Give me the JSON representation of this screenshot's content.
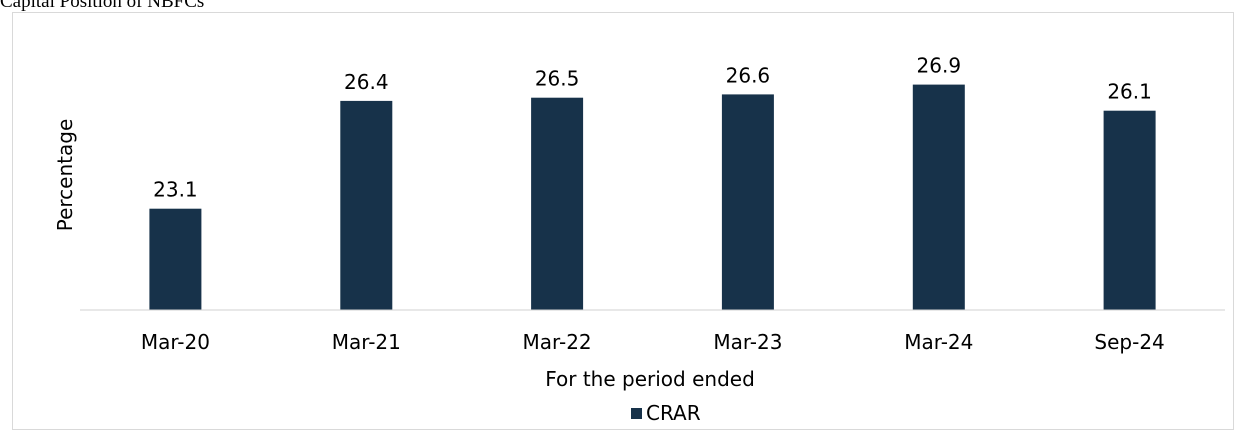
{
  "page_title": "Capital Position of NBFCs",
  "chart_data": {
    "type": "bar",
    "title": "",
    "xlabel": "For the period ended",
    "ylabel": "Percentage",
    "categories": [
      "Mar-20",
      "Mar-21",
      "Mar-22",
      "Mar-23",
      "Mar-24",
      "Sep-24"
    ],
    "series": [
      {
        "name": "CRAR",
        "values": [
          23.1,
          26.4,
          26.5,
          26.6,
          26.9,
          26.1
        ],
        "color": "#17324a"
      }
    ],
    "data_labels": [
      "23.1",
      "26.4",
      "26.5",
      "26.6",
      "26.9",
      "26.1"
    ],
    "ylim": [
      20,
      29
    ],
    "grid": false,
    "legend_position": "bottom"
  }
}
